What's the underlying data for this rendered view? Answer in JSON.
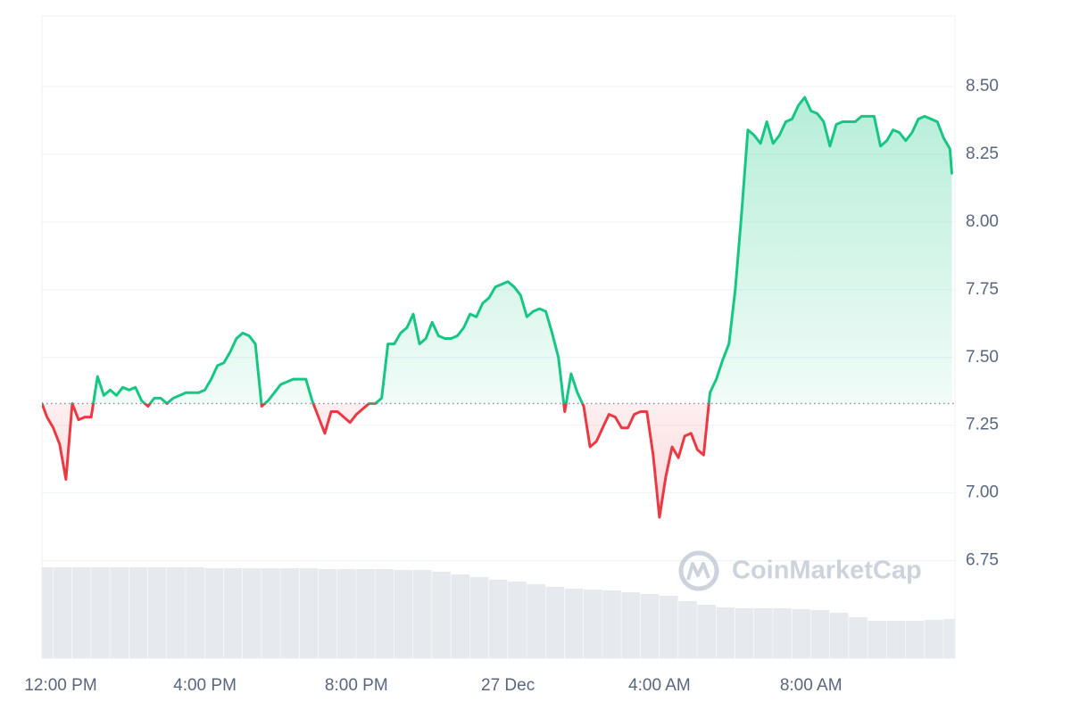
{
  "chart_data": {
    "type": "line",
    "x": [
      -18,
      -10,
      0,
      10,
      20,
      30,
      40,
      50,
      60,
      70,
      80,
      90,
      100,
      110,
      120,
      130,
      140,
      150,
      160,
      170,
      180,
      190,
      200,
      210,
      220,
      230,
      240,
      250,
      260,
      270,
      280,
      290,
      300,
      310,
      320,
      330,
      340,
      350,
      360,
      370,
      380,
      390,
      400,
      410,
      420,
      430,
      440,
      450,
      460,
      470,
      480,
      490,
      500,
      510,
      520,
      530,
      540,
      550,
      560,
      570,
      580,
      590,
      600,
      610,
      620,
      630,
      640,
      650,
      660,
      670,
      680,
      690,
      700,
      710,
      720,
      730,
      740,
      750,
      760,
      770,
      780,
      790,
      800,
      810,
      820,
      830,
      840,
      850,
      860,
      870,
      880,
      890,
      900,
      910,
      920,
      930,
      940,
      950,
      960,
      970,
      980,
      990,
      1000,
      1010,
      1020,
      1030,
      1040,
      1050,
      1060,
      1070,
      1080,
      1090,
      1100,
      1110,
      1120,
      1130,
      1140,
      1150,
      1160,
      1170,
      1180,
      1190,
      1200,
      1210,
      1220,
      1230,
      1240,
      1250,
      1260,
      1270,
      1280,
      1290,
      1300,
      1310,
      1320,
      1330,
      1340,
      1350,
      1360,
      1370,
      1380,
      1390,
      1400,
      1410,
      1420,
      1423
    ],
    "values": [
      7.33,
      7.28,
      7.24,
      7.18,
      7.05,
      7.33,
      7.27,
      7.28,
      7.28,
      7.43,
      7.36,
      7.38,
      7.36,
      7.39,
      7.38,
      7.39,
      7.34,
      7.32,
      7.35,
      7.35,
      7.33,
      7.35,
      7.36,
      7.37,
      7.37,
      7.37,
      7.38,
      7.42,
      7.47,
      7.48,
      7.52,
      7.57,
      7.59,
      7.58,
      7.55,
      7.32,
      7.34,
      7.37,
      7.4,
      7.41,
      7.42,
      7.42,
      7.42,
      7.34,
      7.28,
      7.22,
      7.3,
      7.3,
      7.28,
      7.26,
      7.29,
      7.31,
      7.33,
      7.33,
      7.35,
      7.55,
      7.55,
      7.59,
      7.61,
      7.66,
      7.55,
      7.57,
      7.63,
      7.58,
      7.57,
      7.57,
      7.58,
      7.61,
      7.66,
      7.65,
      7.7,
      7.72,
      7.76,
      7.77,
      7.78,
      7.76,
      7.73,
      7.65,
      7.67,
      7.68,
      7.67,
      7.59,
      7.5,
      7.3,
      7.44,
      7.37,
      7.32,
      7.17,
      7.19,
      7.24,
      7.29,
      7.28,
      7.24,
      7.24,
      7.29,
      7.3,
      7.3,
      7.14,
      6.91,
      7.06,
      7.17,
      7.13,
      7.21,
      7.22,
      7.16,
      7.14,
      7.37,
      7.42,
      7.49,
      7.55,
      7.75,
      8.03,
      8.34,
      8.32,
      8.29,
      8.37,
      8.29,
      8.32,
      8.37,
      8.38,
      8.43,
      8.46,
      8.41,
      8.4,
      8.37,
      8.28,
      8.36,
      8.37,
      8.37,
      8.37,
      8.39,
      8.39,
      8.39,
      8.28,
      8.3,
      8.34,
      8.33,
      8.3,
      8.33,
      8.38,
      8.39,
      8.38,
      8.37,
      8.31,
      8.27,
      8.18
    ],
    "baseline": 7.33,
    "up_color": "#16c784",
    "down_color": "#ea3943",
    "xlim": [
      -18,
      1428
    ],
    "xticks": [
      {
        "value": 0,
        "label": "12:00 PM"
      },
      {
        "value": 240,
        "label": "4:00 PM"
      },
      {
        "value": 480,
        "label": "8:00 PM"
      },
      {
        "value": 720,
        "label": "27 Dec"
      },
      {
        "value": 960,
        "label": "4:00 AM"
      },
      {
        "value": 1200,
        "label": "8:00 AM"
      }
    ],
    "ylim": [
      6.39,
      8.76
    ],
    "yticks": [
      {
        "value": 6.75,
        "label": "6.75"
      },
      {
        "value": 7.0,
        "label": "7.00"
      },
      {
        "value": 7.25,
        "label": "7.25"
      },
      {
        "value": 7.5,
        "label": "7.50"
      },
      {
        "value": 7.75,
        "label": "7.75"
      },
      {
        "value": 8.0,
        "label": "8.00"
      },
      {
        "value": 8.25,
        "label": "8.25"
      },
      {
        "value": 8.5,
        "label": "8.50"
      }
    ],
    "grid": true,
    "volume": {
      "x": [
        -15,
        15,
        45,
        75,
        105,
        135,
        165,
        195,
        225,
        255,
        285,
        315,
        345,
        375,
        405,
        435,
        465,
        495,
        525,
        555,
        585,
        615,
        645,
        675,
        705,
        735,
        765,
        795,
        825,
        855,
        885,
        915,
        945,
        975,
        1005,
        1035,
        1065,
        1095,
        1125,
        1155,
        1185,
        1215,
        1245,
        1275,
        1305,
        1335,
        1365,
        1395,
        1425
      ],
      "values": [
        102,
        102,
        102,
        102,
        102,
        102,
        102,
        102,
        102,
        101,
        101,
        101,
        101,
        101,
        101,
        100,
        100,
        100,
        100,
        99,
        99,
        97,
        94,
        91,
        88,
        86,
        83,
        80,
        78,
        77,
        76,
        74,
        72,
        70,
        64,
        60,
        57,
        56,
        56,
        56,
        55,
        54,
        51,
        46,
        42,
        42,
        42,
        43,
        44
      ],
      "width": 30,
      "y2lim": [
        0,
        110
      ],
      "color": "#e6e9ee"
    },
    "watermark": "CoinMarketCap"
  }
}
